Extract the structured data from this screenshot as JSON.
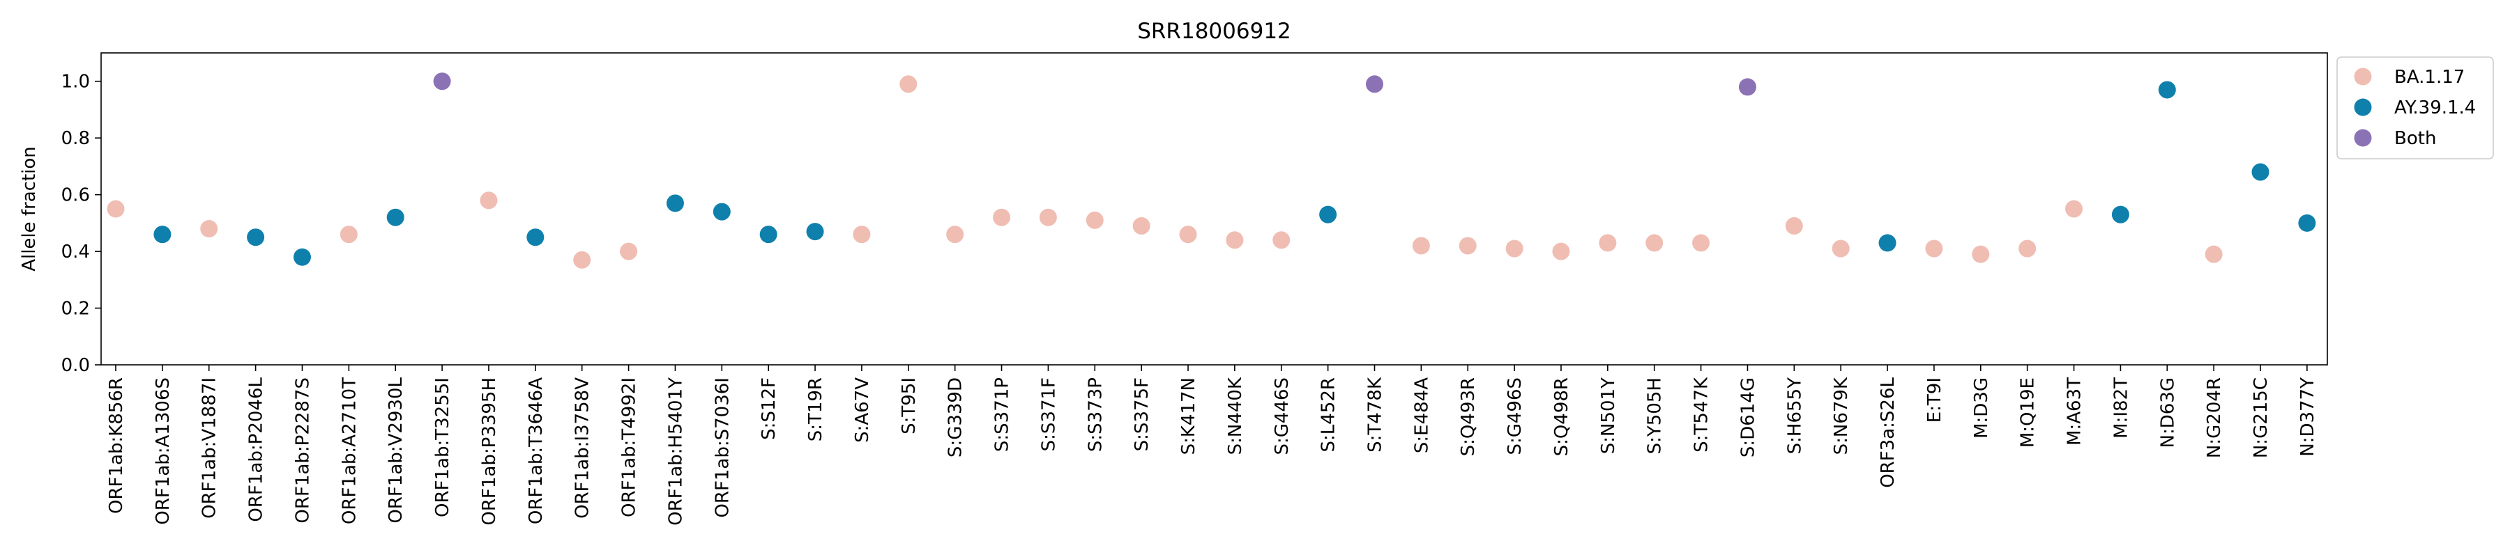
{
  "chart_data": {
    "type": "scatter",
    "title": "SRR18006912",
    "xlabel": "",
    "ylabel": "Allele fraction",
    "ylim": [
      0,
      1.1
    ],
    "yticks": [
      0.0,
      0.2,
      0.4,
      0.6,
      0.8,
      1.0
    ],
    "ytick_labels": [
      "0.0",
      "0.2",
      "0.4",
      "0.6",
      "0.8",
      "1.0"
    ],
    "grid": false,
    "legend_position": "outside-top-right",
    "categories": [
      "ORF1ab:K856R",
      "ORF1ab:A1306S",
      "ORF1ab:V1887I",
      "ORF1ab:P2046L",
      "ORF1ab:P2287S",
      "ORF1ab:A2710T",
      "ORF1ab:V2930L",
      "ORF1ab:T3255I",
      "ORF1ab:P3395H",
      "ORF1ab:T3646A",
      "ORF1ab:I3758V",
      "ORF1ab:T4992I",
      "ORF1ab:H5401Y",
      "ORF1ab:S7036I",
      "S:S12F",
      "S:T19R",
      "S:A67V",
      "S:T95I",
      "S:G339D",
      "S:S371P",
      "S:S371F",
      "S:S373P",
      "S:S375F",
      "S:K417N",
      "S:N440K",
      "S:G446S",
      "S:L452R",
      "S:T478K",
      "S:E484A",
      "S:Q493R",
      "S:G496S",
      "S:Q498R",
      "S:N501Y",
      "S:Y505H",
      "S:T547K",
      "S:D614G",
      "S:H655Y",
      "S:N679K",
      "ORF3a:S26L",
      "E:T9I",
      "M:D3G",
      "M:Q19E",
      "M:A63T",
      "M:I82T",
      "N:D63G",
      "N:G204R",
      "N:G215C",
      "N:D377Y"
    ],
    "values": [
      0.55,
      0.46,
      0.48,
      0.45,
      0.38,
      0.46,
      0.52,
      1.0,
      0.58,
      0.45,
      0.37,
      0.4,
      0.57,
      0.54,
      0.46,
      0.47,
      0.46,
      0.99,
      0.46,
      0.52,
      0.52,
      0.51,
      0.49,
      0.46,
      0.44,
      0.44,
      0.53,
      0.99,
      0.42,
      0.42,
      0.41,
      0.4,
      0.43,
      0.43,
      0.43,
      0.98,
      0.49,
      0.41,
      0.43,
      0.41,
      0.39,
      0.41,
      0.55,
      0.53,
      0.97,
      0.39,
      0.68,
      0.5
    ],
    "groups": [
      "BA.1.17",
      "AY.39.1.4",
      "BA.1.17",
      "AY.39.1.4",
      "AY.39.1.4",
      "BA.1.17",
      "AY.39.1.4",
      "Both",
      "BA.1.17",
      "AY.39.1.4",
      "BA.1.17",
      "BA.1.17",
      "AY.39.1.4",
      "AY.39.1.4",
      "AY.39.1.4",
      "AY.39.1.4",
      "BA.1.17",
      "BA.1.17",
      "BA.1.17",
      "BA.1.17",
      "BA.1.17",
      "BA.1.17",
      "BA.1.17",
      "BA.1.17",
      "BA.1.17",
      "BA.1.17",
      "AY.39.1.4",
      "Both",
      "BA.1.17",
      "BA.1.17",
      "BA.1.17",
      "BA.1.17",
      "BA.1.17",
      "BA.1.17",
      "BA.1.17",
      "Both",
      "BA.1.17",
      "BA.1.17",
      "AY.39.1.4",
      "BA.1.17",
      "BA.1.17",
      "BA.1.17",
      "BA.1.17",
      "AY.39.1.4",
      "AY.39.1.4",
      "BA.1.17",
      "AY.39.1.4",
      "AY.39.1.4"
    ],
    "series": [
      {
        "name": "BA.1.17",
        "color": "#f0bdb3"
      },
      {
        "name": "AY.39.1.4",
        "color": "#0f80ac"
      },
      {
        "name": "Both",
        "color": "#8b72b4"
      }
    ]
  }
}
